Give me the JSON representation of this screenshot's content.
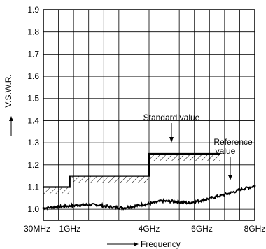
{
  "chart_data": {
    "type": "line",
    "title": "",
    "xlabel": "Frequency",
    "ylabel": "V.S.W.R.",
    "x_ticks": [
      {
        "label": "30MHz",
        "value": 0
      },
      {
        "label": "1GHz",
        "value": 1
      },
      {
        "label": "4GHz",
        "value": 4
      },
      {
        "label": "6GHz",
        "value": 6
      },
      {
        "label": "8GHz",
        "value": 8
      }
    ],
    "xlim": [
      0,
      8
    ],
    "ylim": [
      0.95,
      1.9
    ],
    "y_ticks": [
      "1.0",
      "1.1",
      "1.2",
      "1.3",
      "1.4",
      "1.5",
      "1.6",
      "1.7",
      "1.8",
      "1.9"
    ],
    "grid": true,
    "series": [
      {
        "name": "Standard value",
        "style": "step-hatched",
        "steps": [
          {
            "x0": 0,
            "x1": 1,
            "y": 1.1
          },
          {
            "x0": 1,
            "x1": 4,
            "y": 1.15
          },
          {
            "x0": 4,
            "x1": 6.7,
            "y": 1.25
          }
        ]
      },
      {
        "name": "Reference value",
        "style": "noisy-line",
        "x": [
          0,
          0.5,
          1,
          1.5,
          2,
          2.5,
          3,
          3.5,
          4,
          4.5,
          5,
          5.5,
          6,
          6.5,
          7,
          7.5,
          8
        ],
        "y": [
          1.005,
          1.01,
          1.015,
          1.02,
          1.02,
          1.012,
          1.005,
          1.015,
          1.025,
          1.037,
          1.035,
          1.028,
          1.04,
          1.055,
          1.07,
          1.09,
          1.105
        ]
      }
    ],
    "annotations": [
      {
        "text": "Standard value"
      },
      {
        "text": "Reference"
      },
      {
        "text": "value"
      }
    ]
  }
}
